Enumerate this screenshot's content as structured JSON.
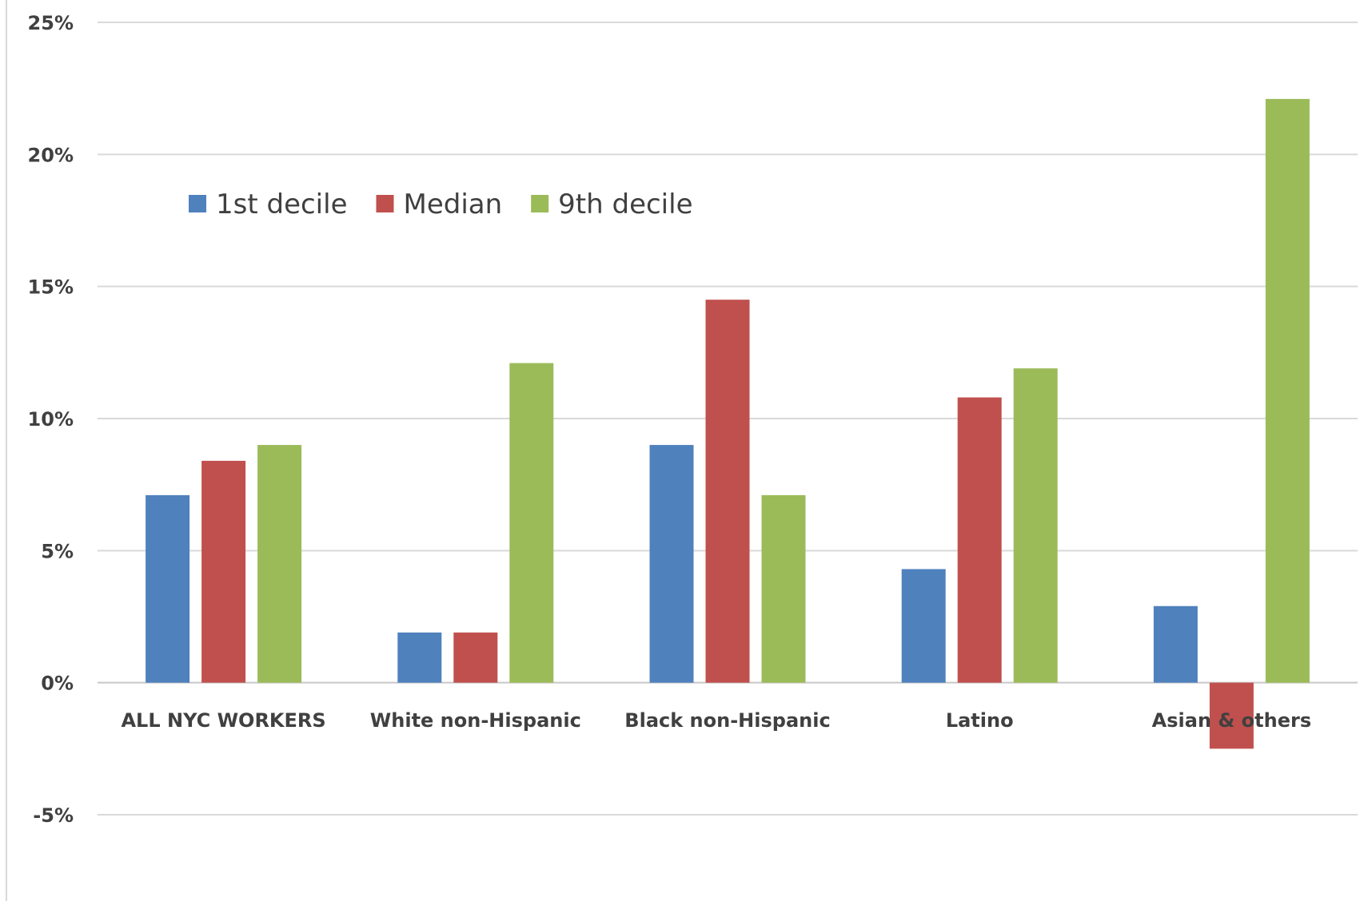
{
  "chart_data": {
    "type": "bar",
    "title": "",
    "xlabel": "",
    "ylabel": "",
    "categories": [
      "ALL NYC WORKERS",
      "White non-Hispanic",
      "Black non-Hispanic",
      "Latino",
      "Asian & others"
    ],
    "series": [
      {
        "name": "1st decile",
        "color": "#4f81bd",
        "values": [
          7.1,
          1.9,
          9.0,
          4.3,
          2.9
        ]
      },
      {
        "name": "Median",
        "color": "#c0504d",
        "values": [
          8.4,
          1.9,
          14.5,
          10.8,
          -2.5
        ]
      },
      {
        "name": "9th decile",
        "color": "#9bbb59",
        "values": [
          9.0,
          12.1,
          7.1,
          11.9,
          22.1
        ]
      }
    ],
    "ylim": [
      -5,
      25
    ],
    "yticks": [
      25,
      20,
      15,
      10,
      5,
      0,
      -5
    ],
    "ytick_labels": [
      "25%",
      "20%",
      "15%",
      "10%",
      "5%",
      "0%",
      "-5%"
    ],
    "grid": true,
    "legend_position": "top-left"
  }
}
